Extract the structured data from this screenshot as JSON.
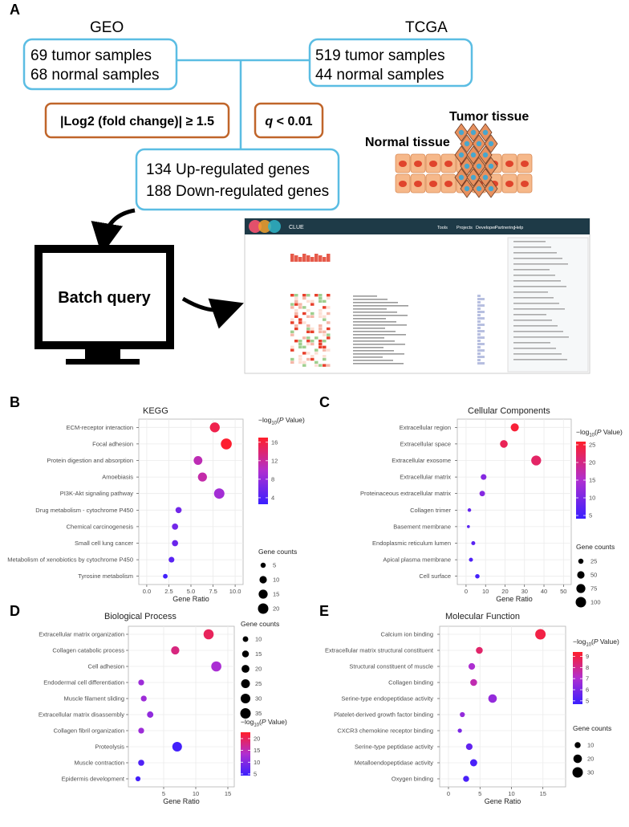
{
  "diagram": {
    "panel": "A",
    "geo": {
      "title": "GEO",
      "lines": [
        "69  tumor  samples",
        "68 normal samples"
      ]
    },
    "tcga": {
      "title": "TCGA",
      "lines": [
        "519  tumor  samples",
        "44   normal  samples"
      ]
    },
    "filter_fold": "|Log2 (fold change)| ≥ 1.5",
    "filter_q": {
      "symbol": "q",
      "rest": " < 0.01"
    },
    "result_lines": [
      "134 Up-regulated genes",
      "188 Down-regulated genes"
    ],
    "tumor_label": "Tumor tissue",
    "normal_label": "Normal tissue",
    "batch_label": "Batch query",
    "clue": {
      "brand": "CLUE",
      "menu": [
        "Tools",
        "Projects",
        "Developer",
        "Partnering",
        "Help"
      ]
    }
  },
  "chart_data": [
    {
      "type": "bubble",
      "panel": "B",
      "title": "KEGG",
      "categories": [
        "ECM-receptor interaction",
        "Focal adhesion",
        "Protein digestion and absorption",
        "Amoebiasis",
        "PI3K-Akt signaling pathway",
        "Drug metabolism - cytochrome P450",
        "Chemical carcinogenesis",
        "Small cell lung cancer",
        "Metabolism of xenobiotics by cytochrome P450",
        "Tyrosine metabolism"
      ],
      "values": [
        7.7,
        9.0,
        5.8,
        6.3,
        8.2,
        3.6,
        3.2,
        3.2,
        2.8,
        2.1
      ],
      "sizes": [
        18,
        22,
        14,
        15,
        20,
        7,
        7,
        7,
        6,
        4
      ],
      "colors": [
        15.5,
        16.8,
        11,
        11.5,
        9,
        6,
        6,
        5.5,
        4.5,
        3
      ],
      "xlabel": "Gene Ratio",
      "xlim": [
        -0.9,
        10.9
      ],
      "xticks": [
        {
          "value": 0,
          "label": "0.0"
        },
        {
          "value": 2.5,
          "label": "2.5"
        },
        {
          "value": 5,
          "label": "5.0"
        },
        {
          "value": 7.5,
          "label": "7.5"
        },
        {
          "value": 10,
          "label": "10.0"
        }
      ],
      "color_title": [
        "−log",
        "10",
        "(",
        "P",
        " Value)"
      ],
      "colorlim": [
        2.6,
        17
      ],
      "color_ticks": [
        4,
        8,
        12,
        16
      ],
      "color_scale": [
        "#3a1fff",
        "#b02fd0",
        "#ff1f2a"
      ],
      "size_title": "Gene counts",
      "size_ticks": [
        5,
        10,
        15,
        20
      ],
      "grid": true
    },
    {
      "type": "bubble",
      "panel": "C",
      "title": "Cellular Components",
      "categories": [
        "Extracellular region",
        "Extracellular space",
        "Extracellular exosome",
        "Extracellular matrix",
        "Proteinaceous extracellular matrix",
        "Collagen trimer",
        "Basement membrane",
        "Endoplasmic reticulum lumen",
        "Apical plasma membrane",
        "Cell surface"
      ],
      "values": [
        25,
        19.4,
        36,
        9,
        8.3,
        1.7,
        1.2,
        3.7,
        2.5,
        5.8
      ],
      "sizes": [
        60,
        55,
        90,
        30,
        28,
        12,
        8,
        15,
        15,
        18
      ],
      "colors": [
        25,
        23,
        22,
        11,
        11,
        8,
        7,
        7,
        6,
        5
      ],
      "xlabel": "Gene Ratio",
      "xlim": [
        -4.5,
        54
      ],
      "xticks": [
        0,
        10,
        20,
        30,
        40,
        50
      ],
      "color_title": [
        "−log",
        "10",
        "(",
        "P",
        " Value)"
      ],
      "colorlim": [
        4.1,
        25.9
      ],
      "color_ticks": [
        5,
        10,
        15,
        20,
        25
      ],
      "color_scale": [
        "#3a1fff",
        "#b02fd0",
        "#ff1f2a"
      ],
      "size_title": "Gene counts",
      "size_ticks": [
        25,
        50,
        75,
        100
      ],
      "grid": true
    },
    {
      "type": "bubble",
      "panel": "D",
      "title": "Biological Process",
      "categories": [
        "Extracellular matrix organization",
        "Collagen catabolic process",
        "Cell adhesion",
        "Endodermal cell differentiation",
        "Muscle filament sliding",
        "Extracellular matrix disassembly",
        "Collagen fibril organization",
        "Proteolysis",
        "Muscle contraction",
        "Epidermis development"
      ],
      "values": [
        12,
        6.8,
        13.2,
        1.5,
        1.9,
        2.9,
        1.5,
        7.1,
        1.5,
        1.0
      ],
      "sizes": [
        33,
        22,
        33,
        11,
        11,
        13,
        11,
        30,
        12,
        8
      ],
      "colors": [
        20,
        18,
        13,
        12,
        12,
        11,
        12,
        5,
        6,
        5
      ],
      "xlabel": "Gene Ratio",
      "xlim": [
        -0.5,
        16
      ],
      "xticks": [
        5,
        10,
        15
      ],
      "color_title": [
        "−log",
        "10",
        "(",
        "P",
        " Value)"
      ],
      "colorlim": [
        4.3,
        22.7
      ],
      "color_ticks": [
        5,
        10,
        15,
        20
      ],
      "color_scale": [
        "#3a1fff",
        "#b02fd0",
        "#ff1f2a"
      ],
      "size_title": "Gene counts",
      "size_ticks": [
        10,
        15,
        20,
        25,
        30,
        35
      ],
      "grid": true
    },
    {
      "type": "bubble",
      "panel": "E",
      "title": "Molecular Function",
      "categories": [
        "Calcium ion binding",
        "Extracellular matrix structural constituent",
        "Structural constituent of muscle",
        "Collagen binding",
        "Serine-type endopeptidase activity",
        "Platelet-derived growth factor binding",
        "CXCR3 chemokine receptor binding",
        "Serine-type peptidase activity",
        "Metalloendopeptidase activity",
        "Oxygen binding"
      ],
      "values": [
        14.6,
        4.9,
        3.7,
        4,
        7,
        2.2,
        1.8,
        3.3,
        4,
        2.8
      ],
      "sizes": [
        30,
        13,
        12,
        13,
        20,
        7,
        5,
        12,
        14,
        10
      ],
      "colors": [
        9,
        8.5,
        7,
        7.5,
        6.5,
        6.5,
        6,
        5.5,
        5,
        5
      ],
      "xlabel": "Gene Ratio",
      "xlim": [
        -1.4,
        18.6
      ],
      "xticks": [
        0,
        5,
        10,
        15
      ],
      "color_title": [
        "−log",
        "10",
        "(",
        "P",
        " Value)"
      ],
      "colorlim": [
        4.7,
        9.4
      ],
      "color_ticks": [
        5,
        6,
        7,
        8,
        9
      ],
      "color_scale": [
        "#3a1fff",
        "#b02fd0",
        "#ff1f2a"
      ],
      "size_title": "Gene counts",
      "size_ticks": [
        10,
        20,
        30
      ],
      "grid": true
    }
  ]
}
